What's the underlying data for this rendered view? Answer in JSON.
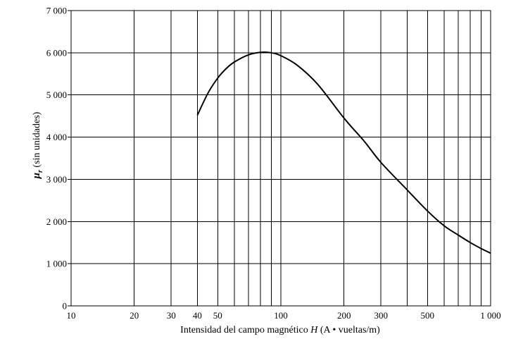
{
  "chart_data": {
    "type": "line",
    "x_scale": "log",
    "xlim": [
      10,
      1000
    ],
    "ylim": [
      0,
      7000
    ],
    "grid": true,
    "xlabel": {
      "prefix": "Intensidad del campo magnético ",
      "var": "H",
      "suffix": " (A • vueltas/m)"
    },
    "ylabel": {
      "symbol": "μ",
      "subscript": "r",
      "text": " (sin unidades)"
    },
    "x_grid": [
      20,
      30,
      40,
      50,
      60,
      70,
      80,
      90,
      100,
      200,
      300,
      400,
      500,
      600,
      700,
      800,
      900
    ],
    "x_ticks": [
      {
        "value": 10,
        "label": "10"
      },
      {
        "value": 20,
        "label": "20"
      },
      {
        "value": 30,
        "label": "30"
      },
      {
        "value": 40,
        "label": "40"
      },
      {
        "value": 50,
        "label": "50"
      },
      {
        "value": 100,
        "label": "100"
      },
      {
        "value": 200,
        "label": "200"
      },
      {
        "value": 300,
        "label": "300"
      },
      {
        "value": 500,
        "label": "500"
      },
      {
        "value": 1000,
        "label": "1 000"
      }
    ],
    "y_ticks": [
      {
        "value": 0,
        "label": "0"
      },
      {
        "value": 1000,
        "label": "1 000"
      },
      {
        "value": 2000,
        "label": "2 000"
      },
      {
        "value": 3000,
        "label": "3 000"
      },
      {
        "value": 4000,
        "label": "4 000"
      },
      {
        "value": 5000,
        "label": "5 000"
      },
      {
        "value": 6000,
        "label": "6 000"
      },
      {
        "value": 7000,
        "label": "7 000"
      }
    ],
    "series": [
      {
        "x": [
          40,
          45,
          50,
          55,
          60,
          70,
          80,
          90,
          100,
          120,
          150,
          200,
          250,
          300,
          400,
          500,
          600,
          700,
          800,
          900,
          1000
        ],
        "y": [
          4520,
          5050,
          5400,
          5630,
          5780,
          5950,
          6010,
          6000,
          5930,
          5700,
          5250,
          4450,
          3900,
          3400,
          2750,
          2250,
          1900,
          1680,
          1500,
          1360,
          1250
        ]
      }
    ]
  }
}
